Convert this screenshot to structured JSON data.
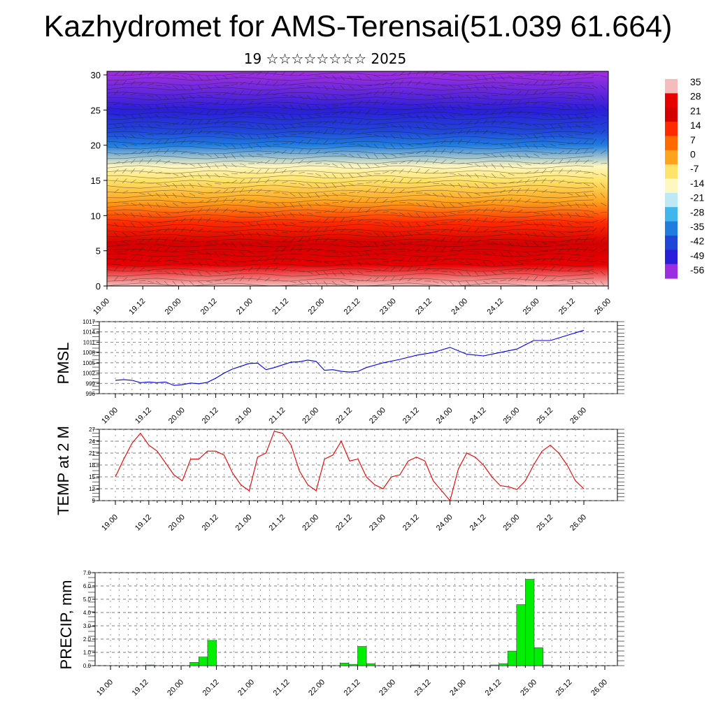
{
  "title": "Kazhydromet for AMS-Terensai(51.039 61.664)",
  "subtitle": "19 ☆☆☆☆☆☆☆☆ 2025",
  "time_labels": [
    "19.00",
    "19.12",
    "20.00",
    "20.12",
    "21.00",
    "21.12",
    "22.00",
    "22.12",
    "23.00",
    "23.12",
    "24.00",
    "24.12",
    "25.00",
    "25.12",
    "26.00"
  ],
  "chart_data": [
    {
      "type": "heatmap",
      "id": "cross-section",
      "title": "",
      "x_ticks": [
        "19.00",
        "19.12",
        "20.00",
        "20.12",
        "21.00",
        "21.12",
        "22.00",
        "22.12",
        "23.00",
        "23.12",
        "24.00",
        "24.12",
        "25.00",
        "25.12",
        "26.00"
      ],
      "y_ticks": [
        0,
        5,
        10,
        15,
        20,
        25,
        30
      ],
      "ylim": [
        0,
        30.5
      ],
      "colorbar_labels": [
        35,
        28,
        21,
        14,
        7,
        0,
        -7,
        -14,
        -21,
        -28,
        -35,
        -42,
        -49,
        -56
      ],
      "colorbar_colors": [
        "#f4bcbc",
        "#e60000",
        "#d40000",
        "#ff2a00",
        "#ff6a00",
        "#ffa31f",
        "#ffe46a",
        "#fff7c0",
        "#bfe8f5",
        "#3fb6ec",
        "#1f7de0",
        "#2046d8",
        "#2a1fd8",
        "#9a2ee0"
      ],
      "temperature_by_level": [
        {
          "level": 0,
          "value": 30
        },
        {
          "level": 3,
          "value": 26
        },
        {
          "level": 6,
          "value": 18
        },
        {
          "level": 9,
          "value": 10
        },
        {
          "level": 12,
          "value": 0
        },
        {
          "level": 15,
          "value": -10
        },
        {
          "level": 17,
          "value": -20
        },
        {
          "level": 20,
          "value": -35
        },
        {
          "level": 22,
          "value": -45
        },
        {
          "level": 25,
          "value": -55
        },
        {
          "level": 30,
          "value": -60
        }
      ],
      "grid": false
    },
    {
      "type": "line",
      "id": "pmsl",
      "ylabel": "PMSL",
      "ylim": [
        996,
        1017
      ],
      "y_ticks": [
        996,
        999,
        1002,
        1005,
        1008,
        1011,
        1014,
        1017
      ],
      "x_ticks": [
        "19.00",
        "19.12",
        "20.00",
        "20.12",
        "21.00",
        "21.12",
        "22.00",
        "22.12",
        "23.00",
        "23.12",
        "24.00",
        "24.12",
        "25.00",
        "25.12",
        "26.00"
      ],
      "x_hours": [
        0,
        3,
        6,
        9,
        12,
        15,
        18,
        21,
        24,
        27,
        30,
        33,
        36,
        39,
        42,
        45,
        48,
        51,
        54,
        57,
        60,
        63,
        66,
        69,
        72,
        75,
        78,
        81,
        84,
        87,
        90,
        96,
        102,
        108,
        114,
        120,
        126,
        132,
        138,
        144,
        150,
        156,
        162,
        168
      ],
      "values": [
        999.9,
        1000.1,
        999.9,
        999.2,
        999.4,
        999.2,
        999.4,
        998.4,
        998.6,
        999.1,
        998.9,
        999.3,
        1000.5,
        1002.0,
        1003.2,
        1004.0,
        1004.8,
        1004.9,
        1003.0,
        1003.6,
        1004.4,
        1005.2,
        1005.3,
        1005.8,
        1005.4,
        1002.8,
        1003.0,
        1002.5,
        1002.3,
        1002.5,
        1003.6,
        1005.0,
        1006.0,
        1007.2,
        1008.0,
        1009.5,
        1007.5,
        1007.0,
        1008.0,
        1009.0,
        1011.5,
        1011.5,
        1013.0,
        1014.5
      ],
      "color": "#0000e0",
      "grid": true
    },
    {
      "type": "line",
      "id": "temp2m",
      "ylabel": "TEMP at 2 M",
      "ylim": [
        9,
        27
      ],
      "y_ticks": [
        9,
        12,
        15,
        18,
        21,
        24,
        27
      ],
      "x_ticks": [
        "19.00",
        "19.12",
        "20.00",
        "20.12",
        "21.00",
        "21.12",
        "22.00",
        "22.12",
        "23.00",
        "23.12",
        "24.00",
        "24.12",
        "25.00",
        "25.12",
        "26.00"
      ],
      "x_hours": [
        0,
        3,
        6,
        9,
        12,
        15,
        18,
        21,
        24,
        27,
        30,
        33,
        36,
        39,
        42,
        45,
        48,
        51,
        54,
        57,
        60,
        63,
        66,
        69,
        72,
        75,
        78,
        81,
        84,
        87,
        90,
        93,
        96,
        99,
        102,
        105,
        108,
        111,
        114,
        117,
        120,
        123,
        126,
        129,
        132,
        135,
        138,
        141,
        144,
        147,
        150,
        153,
        156,
        159,
        162,
        165,
        168
      ],
      "values": [
        15.0,
        19.5,
        23.5,
        26.0,
        23.0,
        21.5,
        18.5,
        15.5,
        14.0,
        19.5,
        19.5,
        21.5,
        21.5,
        20.5,
        16.0,
        13.0,
        11.5,
        20.0,
        21.0,
        26.5,
        26.0,
        23.0,
        16.5,
        13.0,
        11.5,
        19.5,
        20.5,
        24.0,
        19.0,
        19.5,
        15.0,
        13.0,
        12.0,
        15.0,
        15.5,
        19.0,
        20.0,
        19.0,
        14.0,
        11.5,
        9.0,
        17.0,
        21.0,
        20.0,
        18.0,
        15.0,
        12.8,
        12.5,
        11.8,
        14.0,
        18.0,
        21.5,
        23.0,
        21.0,
        18.0,
        14.0,
        12.0
      ],
      "color": "#e00000",
      "grid": true
    },
    {
      "type": "bar",
      "id": "precip",
      "ylabel": "PRECIP, mm",
      "ylim": [
        0,
        7
      ],
      "y_ticks": [
        "0.0",
        "1.0",
        "2.0",
        "3.0",
        "4.0",
        "5.0",
        "6.0",
        "7.0"
      ],
      "x_ticks": [
        "19.00",
        "19.12",
        "20.00",
        "20.12",
        "21.00",
        "21.12",
        "22.00",
        "22.12",
        "23.00",
        "23.12",
        "24.00",
        "24.12",
        "25.00",
        "25.12",
        "26.00"
      ],
      "bars": [
        {
          "start_hour": 12,
          "end_hour": 15,
          "value": 0.05
        },
        {
          "start_hour": 27,
          "end_hour": 30,
          "value": 0.25
        },
        {
          "start_hour": 30,
          "end_hour": 33,
          "value": 0.65
        },
        {
          "start_hour": 33,
          "end_hour": 36,
          "value": 1.9
        },
        {
          "start_hour": 78,
          "end_hour": 81,
          "value": 0.2
        },
        {
          "start_hour": 81,
          "end_hour": 84,
          "value": 0.1
        },
        {
          "start_hour": 84,
          "end_hour": 87,
          "value": 1.45
        },
        {
          "start_hour": 87,
          "end_hour": 90,
          "value": 0.15
        },
        {
          "start_hour": 102,
          "end_hour": 105,
          "value": 0.05
        },
        {
          "start_hour": 129,
          "end_hour": 132,
          "value": 0.05
        },
        {
          "start_hour": 132,
          "end_hour": 135,
          "value": 0.15
        },
        {
          "start_hour": 135,
          "end_hour": 138,
          "value": 1.1
        },
        {
          "start_hour": 138,
          "end_hour": 141,
          "value": 4.6
        },
        {
          "start_hour": 141,
          "end_hour": 144,
          "value": 6.5
        },
        {
          "start_hour": 144,
          "end_hour": 147,
          "value": 1.35
        },
        {
          "start_hour": 147,
          "end_hour": 150,
          "value": 0.05
        }
      ],
      "color": "#00ee00",
      "grid": true
    }
  ]
}
